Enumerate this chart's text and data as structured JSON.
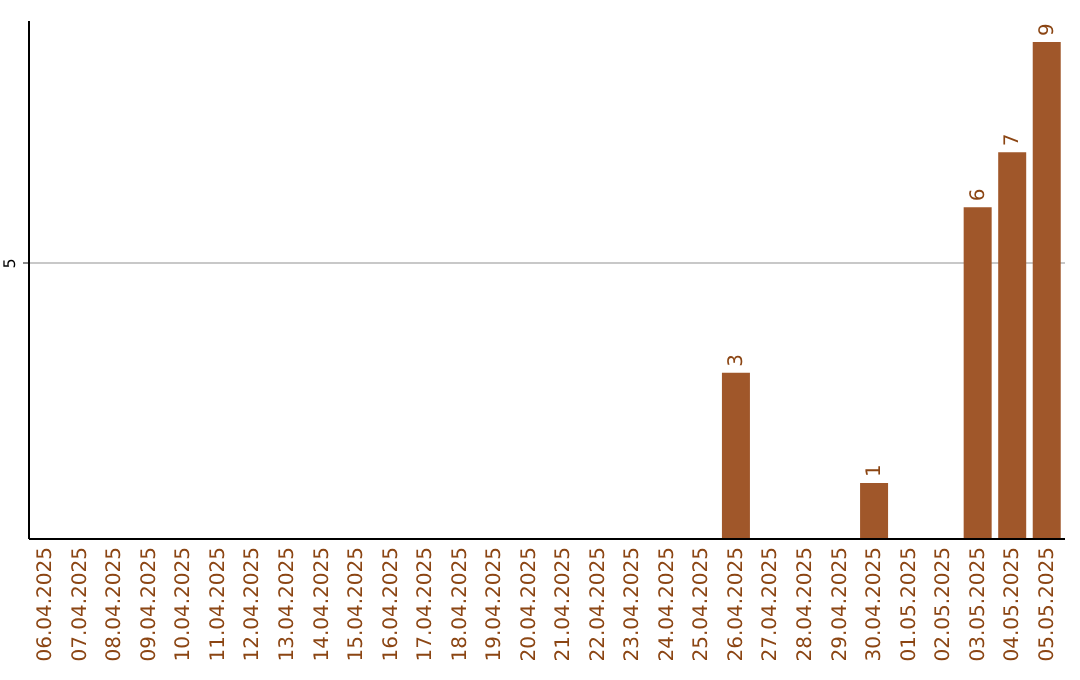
{
  "chart_data": {
    "type": "bar",
    "categories": [
      "06.04.2025",
      "07.04.2025",
      "08.04.2025",
      "09.04.2025",
      "10.04.2025",
      "11.04.2025",
      "12.04.2025",
      "13.04.2025",
      "14.04.2025",
      "15.04.2025",
      "16.04.2025",
      "17.04.2025",
      "18.04.2025",
      "19.04.2025",
      "20.04.2025",
      "21.04.2025",
      "22.04.2025",
      "23.04.2025",
      "24.04.2025",
      "25.04.2025",
      "26.04.2025",
      "27.04.2025",
      "28.04.2025",
      "29.04.2025",
      "30.04.2025",
      "01.05.2025",
      "02.05.2025",
      "03.05.2025",
      "04.05.2025",
      "05.05.2025"
    ],
    "values": [
      null,
      null,
      null,
      null,
      null,
      null,
      null,
      null,
      null,
      null,
      null,
      null,
      null,
      null,
      null,
      null,
      null,
      null,
      null,
      null,
      3,
      null,
      null,
      null,
      1,
      null,
      null,
      6,
      7,
      9
    ],
    "data_labels": true,
    "color": "#a0572a",
    "ylim": [
      0,
      9.4
    ],
    "yticks": [
      5
    ],
    "grid": "y"
  }
}
